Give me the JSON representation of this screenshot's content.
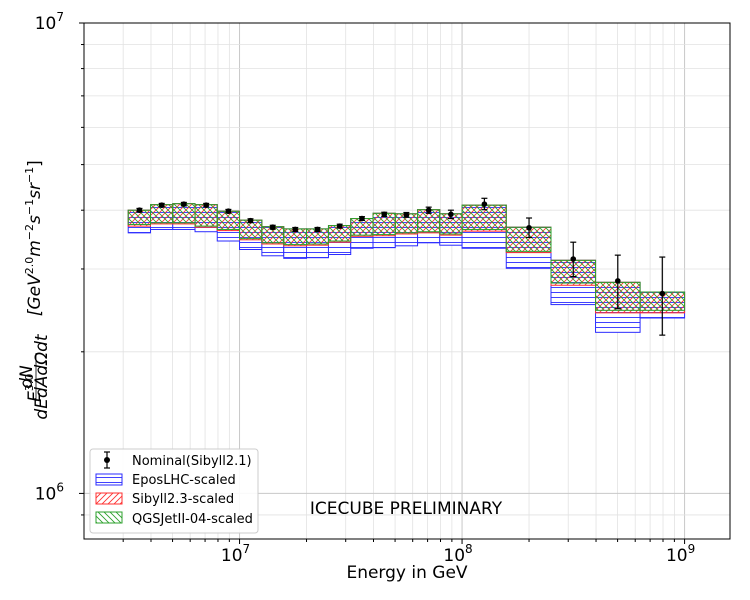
{
  "chart_data": {
    "type": "histogram-errorbar",
    "xlabel": "Energy in GeV",
    "ylabel_parts": {
      "base": "E",
      "base_exp": "3.0",
      "frac_num": "dN",
      "frac_den": "dEdAdΩdt",
      "bracket_open": "[GeV",
      "gev_exp": "2.0",
      "m": "m",
      "m_exp": "−2",
      "s": "s",
      "s_exp": "−1",
      "sr": "sr",
      "sr_exp": "−1",
      "bracket_close": "]"
    },
    "x_scale": "log",
    "y_scale": "log",
    "xlim": [
      2000000,
      1600000000
    ],
    "ylim": [
      800000,
      10000000
    ],
    "x_ticks": [
      {
        "value": 10000000,
        "base": "10",
        "exp": "7"
      },
      {
        "value": 100000000,
        "base": "10",
        "exp": "8"
      },
      {
        "value": 1000000000,
        "base": "10",
        "exp": "9"
      }
    ],
    "y_ticks": [
      {
        "value": 1000000,
        "base": "10",
        "exp": "6"
      },
      {
        "value": 10000000,
        "base": "10",
        "exp": "7"
      }
    ],
    "grid": true,
    "legend_position": "lower-left",
    "annotation": "ICECUBE PRELIMINARY",
    "bin_edges": [
      3160000,
      3980000,
      5010000,
      6310000,
      7940000,
      10000000,
      12600000,
      15800000,
      20000000,
      25100000,
      31600000,
      39800000,
      50100000,
      63100000,
      79400000,
      100000000,
      158000000,
      251000000,
      398000000,
      631000000,
      1000000000
    ],
    "series": [
      {
        "name": "Nominal(Sibyll2.1)",
        "kind": "points",
        "color": "#000000",
        "x": [
          3550000,
          4470000,
          5620000,
          7080000,
          8910000,
          11200000,
          14100000,
          17800000,
          22400000,
          28200000,
          35500000,
          44700000,
          56200000,
          70800000,
          89100000,
          126000000,
          200000000,
          316000000,
          501000000,
          794000000
        ],
        "values": [
          4000000,
          4100000,
          4120000,
          4100000,
          3980000,
          3800000,
          3680000,
          3640000,
          3640000,
          3700000,
          3840000,
          3920000,
          3910000,
          4000000,
          3920000,
          4120000,
          3670000,
          3150000,
          2830000,
          2660000
        ],
        "err_low": [
          35000,
          35000,
          35000,
          35000,
          35000,
          35000,
          35000,
          35000,
          35000,
          35000,
          35000,
          40000,
          45000,
          60000,
          80000,
          110000,
          170000,
          260000,
          360000,
          490000
        ],
        "err_high": [
          35000,
          35000,
          35000,
          35000,
          35000,
          35000,
          35000,
          35000,
          35000,
          35000,
          35000,
          40000,
          45000,
          60000,
          80000,
          120000,
          180000,
          270000,
          380000,
          520000
        ]
      },
      {
        "name": "EposLHC-scaled",
        "kind": "band",
        "color": "#2b2bff",
        "hatch": "horizontal",
        "low": [
          3580000,
          3640000,
          3640000,
          3600000,
          3440000,
          3300000,
          3200000,
          3160000,
          3170000,
          3220000,
          3320000,
          3330000,
          3360000,
          3410000,
          3370000,
          3320000,
          3010000,
          2520000,
          2200000,
          2360000
        ],
        "high": [
          4000000,
          4110000,
          4130000,
          4110000,
          3980000,
          3810000,
          3690000,
          3650000,
          3650000,
          3710000,
          3840000,
          3940000,
          3930000,
          4010000,
          3930000,
          4100000,
          3680000,
          3130000,
          2810000,
          2680000
        ]
      },
      {
        "name": "Sibyll2.3-scaled",
        "kind": "band",
        "color": "#ff3030",
        "hatch": "diagonal",
        "low": [
          3700000,
          3740000,
          3740000,
          3680000,
          3620000,
          3460000,
          3390000,
          3360000,
          3370000,
          3420000,
          3520000,
          3530000,
          3560000,
          3580000,
          3540000,
          3610000,
          3250000,
          2770000,
          2420000,
          2420000
        ],
        "high": [
          4000000,
          4110000,
          4130000,
          4110000,
          3980000,
          3810000,
          3690000,
          3650000,
          3650000,
          3710000,
          3840000,
          3940000,
          3930000,
          4010000,
          3930000,
          4100000,
          3680000,
          3130000,
          2810000,
          2680000
        ]
      },
      {
        "name": "QGSJetII-04-scaled",
        "kind": "band",
        "color": "#2ca02c",
        "hatch": "antidiagonal",
        "low": [
          3730000,
          3760000,
          3760000,
          3700000,
          3640000,
          3480000,
          3410000,
          3380000,
          3390000,
          3440000,
          3540000,
          3550000,
          3580000,
          3600000,
          3560000,
          3640000,
          3270000,
          2800000,
          2450000,
          2450000
        ],
        "high": [
          4000000,
          4110000,
          4130000,
          4110000,
          3980000,
          3810000,
          3690000,
          3650000,
          3650000,
          3710000,
          3840000,
          3940000,
          3930000,
          4010000,
          3930000,
          4100000,
          3680000,
          3130000,
          2810000,
          2680000
        ]
      }
    ]
  }
}
